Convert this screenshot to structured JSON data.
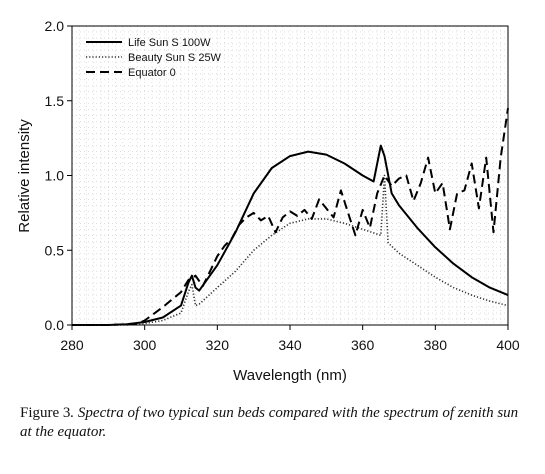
{
  "chart_data": {
    "type": "line",
    "title": "",
    "xlabel": "Wavelength (nm)",
    "ylabel": "Relative intensity",
    "xlim": [
      280,
      400
    ],
    "ylim": [
      0,
      2.0
    ],
    "x_ticks": [
      "280",
      "300",
      "320",
      "340",
      "360",
      "380",
      "400"
    ],
    "y_ticks": [
      "0.0",
      "0.5",
      "1.0",
      "1.5",
      "2.0"
    ],
    "grid": "dotted",
    "legend_position": "top-left",
    "series": [
      {
        "name": "Life Sun S 100W",
        "style": "solid",
        "color": "#000000",
        "x": [
          280,
          290,
          295,
          300,
          305,
          310,
          312,
          313,
          314,
          315,
          320,
          325,
          330,
          335,
          340,
          345,
          350,
          355,
          360,
          363,
          365,
          366,
          368,
          370,
          375,
          380,
          385,
          390,
          395,
          400
        ],
        "y": [
          0,
          0,
          0.005,
          0.02,
          0.05,
          0.13,
          0.28,
          0.33,
          0.25,
          0.23,
          0.4,
          0.62,
          0.88,
          1.05,
          1.13,
          1.16,
          1.14,
          1.08,
          1.0,
          0.96,
          1.2,
          1.13,
          0.88,
          0.8,
          0.65,
          0.52,
          0.41,
          0.32,
          0.25,
          0.2
        ]
      },
      {
        "name": "Beauty Sun S 25W",
        "style": "dotted",
        "color": "#333333",
        "x": [
          280,
          295,
          300,
          305,
          310,
          312,
          313,
          314,
          315,
          320,
          325,
          330,
          335,
          340,
          345,
          350,
          355,
          360,
          365,
          366,
          367,
          370,
          375,
          380,
          385,
          390,
          395,
          400
        ],
        "y": [
          0,
          0,
          0.01,
          0.03,
          0.08,
          0.22,
          0.27,
          0.13,
          0.14,
          0.25,
          0.36,
          0.5,
          0.6,
          0.68,
          0.71,
          0.71,
          0.68,
          0.64,
          0.6,
          1.0,
          0.55,
          0.48,
          0.4,
          0.32,
          0.25,
          0.2,
          0.16,
          0.13
        ]
      },
      {
        "name": "Equator 0",
        "style": "dashed",
        "color": "#000000",
        "x": [
          280,
          290,
          295,
          298,
          300,
          305,
          310,
          312,
          314,
          316,
          318,
          320,
          322,
          324,
          326,
          328,
          330,
          332,
          334,
          336,
          338,
          340,
          342,
          344,
          346,
          348,
          350,
          352,
          354,
          356,
          358,
          360,
          362,
          364,
          366,
          368,
          370,
          372,
          374,
          376,
          378,
          380,
          382,
          384,
          386,
          388,
          390,
          392,
          394,
          396,
          398,
          400
        ],
        "y": [
          0,
          0,
          0.005,
          0.01,
          0.03,
          0.12,
          0.22,
          0.3,
          0.33,
          0.26,
          0.36,
          0.46,
          0.53,
          0.58,
          0.67,
          0.72,
          0.75,
          0.7,
          0.73,
          0.62,
          0.72,
          0.76,
          0.73,
          0.77,
          0.71,
          0.84,
          0.78,
          0.72,
          0.9,
          0.75,
          0.6,
          0.77,
          0.65,
          0.88,
          1.0,
          0.93,
          0.98,
          1.0,
          0.83,
          0.95,
          1.12,
          0.88,
          0.95,
          0.64,
          0.88,
          0.9,
          1.08,
          0.78,
          1.12,
          0.62,
          1.12,
          1.45
        ]
      }
    ]
  },
  "caption": {
    "figure_label": "Figure 3",
    "body": ". Spectra of two typical sun beds compared with the spectrum of zenith sun at the equator."
  }
}
